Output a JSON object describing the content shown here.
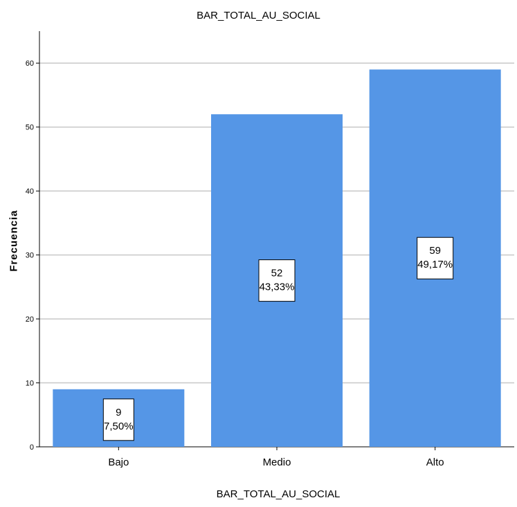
{
  "chart_data": {
    "type": "bar",
    "title": "BAR_TOTAL_AU_SOCIAL",
    "xlabel": "BAR_TOTAL_AU_SOCIAL",
    "ylabel": "Frecuencia",
    "categories": [
      "Bajo",
      "Medio",
      "Alto"
    ],
    "values": [
      9,
      52,
      59
    ],
    "percent_labels": [
      "7,50%",
      "43,33%",
      "49,17%"
    ],
    "ylim": [
      0,
      65
    ],
    "yticks": [
      0,
      10,
      20,
      30,
      40,
      50,
      60
    ],
    "grid": true,
    "bar_color": "#5596e6",
    "grid_color": "#c8c8c8"
  }
}
